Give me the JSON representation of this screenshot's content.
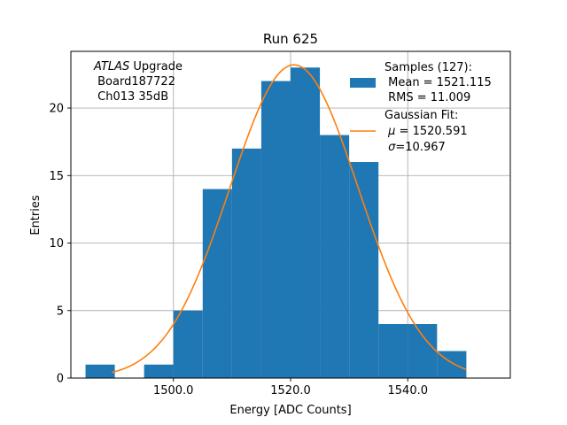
{
  "chart_data": {
    "type": "bar",
    "title": "Run 625",
    "xlabel": "Energy [ADC Counts]",
    "ylabel": "Entries",
    "xlim": [
      1482.5,
      1557.5
    ],
    "ylim": [
      0,
      24.2
    ],
    "xticks": [
      1500,
      1520,
      1540
    ],
    "xtick_labels": [
      "1500.0",
      "1520.0",
      "1540.0"
    ],
    "yticks": [
      0,
      5,
      10,
      15,
      20
    ],
    "ytick_labels": [
      "0",
      "5",
      "10",
      "15",
      "20"
    ],
    "grid": true,
    "bin_width": 5,
    "bins": [
      {
        "x0": 1485,
        "x1": 1490,
        "count": 1
      },
      {
        "x0": 1490,
        "x1": 1495,
        "count": 0
      },
      {
        "x0": 1495,
        "x1": 1500,
        "count": 1
      },
      {
        "x0": 1500,
        "x1": 1505,
        "count": 5
      },
      {
        "x0": 1505,
        "x1": 1510,
        "count": 14
      },
      {
        "x0": 1510,
        "x1": 1515,
        "count": 17
      },
      {
        "x0": 1515,
        "x1": 1520,
        "count": 22
      },
      {
        "x0": 1520,
        "x1": 1525,
        "count": 23
      },
      {
        "x0": 1525,
        "x1": 1530,
        "count": 18
      },
      {
        "x0": 1530,
        "x1": 1535,
        "count": 16
      },
      {
        "x0": 1535,
        "x1": 1540,
        "count": 4
      },
      {
        "x0": 1540,
        "x1": 1545,
        "count": 4
      },
      {
        "x0": 1545,
        "x1": 1550,
        "count": 2
      }
    ],
    "fit": {
      "mu": 1520.591,
      "sigma": 10.967,
      "amplitude": 23.2,
      "x_range": [
        1489.5,
        1550
      ]
    },
    "colors": {
      "histogram": "#1f77b4",
      "fit": "#ff7f0e",
      "grid": "#b0b0b0"
    },
    "annotation": {
      "line1_italic": "ATLAS",
      "line1_rest": " Upgrade",
      "line2": " Board187722",
      "line3": " Ch013 35dB"
    },
    "legend": {
      "placement": "upper right",
      "samples_line1": "Samples (127):",
      "samples_line2": " Mean = 1521.115",
      "samples_line3": " RMS = 11.009",
      "fit_line1": "Gaussian Fit:",
      "fit_line2_symbol": "μ",
      "fit_line2_rest": " = 1520.591",
      "fit_line3_symbol": "σ",
      "fit_line3_rest": "=10.967"
    }
  }
}
